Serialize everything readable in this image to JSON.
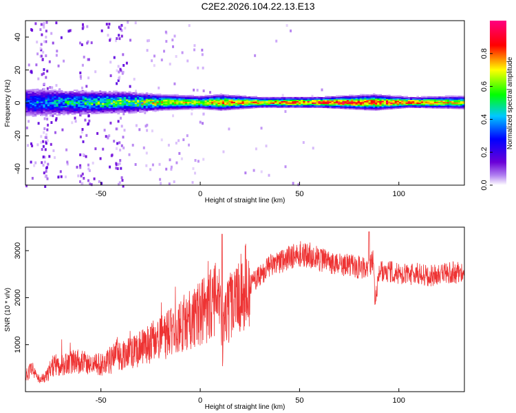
{
  "title": "C2E2.2026.104.22.13.E13",
  "chart_data": [
    {
      "type": "heatmap",
      "xlabel": "Height of straight line (km)",
      "ylabel": "Frequency (Hz)",
      "xlim": [
        -88,
        133
      ],
      "ylim": [
        -50,
        50
      ],
      "xticks": [
        "-50",
        "0",
        "50",
        "100"
      ],
      "yticks": [
        "40",
        "20",
        "0",
        "-20",
        "-40"
      ],
      "colorbar": {
        "label": "Normalized spectral amplitude",
        "range": [
          0,
          1
        ],
        "ticks": [
          "0.0",
          "0.2",
          "0.4",
          "0.6",
          "0.8"
        ],
        "colors": [
          "#ffffff",
          "#6a00d8",
          "#0000ff",
          "#00c8ff",
          "#00ff00",
          "#ffff00",
          "#ff0000",
          "#ff0080"
        ]
      },
      "description_of_content": "",
      "band": [
        {
          "x": -85,
          "half_width_hz": 6,
          "peak_amp": 0.35
        },
        {
          "x": -70,
          "half_width_hz": 5,
          "peak_amp": 0.45
        },
        {
          "x": -50,
          "half_width_hz": 4.5,
          "peak_amp": 0.55
        },
        {
          "x": -35,
          "half_width_hz": 4,
          "peak_amp": 0.6
        },
        {
          "x": -20,
          "half_width_hz": 3,
          "peak_amp": 0.75
        },
        {
          "x": 0,
          "half_width_hz": 2.5,
          "peak_amp": 0.7
        },
        {
          "x": 10,
          "half_width_hz": 3,
          "peak_amp": 0.85
        },
        {
          "x": 30,
          "half_width_hz": 2,
          "peak_amp": 0.8
        },
        {
          "x": 60,
          "half_width_hz": 2,
          "peak_amp": 0.95
        },
        {
          "x": 87,
          "half_width_hz": 3,
          "peak_amp": 0.9
        },
        {
          "x": 105,
          "half_width_hz": 2,
          "peak_amp": 0.9
        },
        {
          "x": 133,
          "half_width_hz": 2.5,
          "peak_amp": 0.7
        }
      ]
    },
    {
      "type": "line",
      "xlabel": "Height of straight line (km)",
      "ylabel": "SNR (10 * v/v)",
      "xlim": [
        -88,
        133
      ],
      "ylim": [
        0,
        3500
      ],
      "xticks": [
        "-50",
        "0",
        "50",
        "100"
      ],
      "yticks": [
        "3000",
        "2000",
        "1000"
      ],
      "color": "#ee3333",
      "series": [
        {
          "x": [
            -88,
            -85,
            -82,
            -80,
            -77,
            -75,
            -70,
            -65,
            -60,
            -55,
            -50,
            -45,
            -42,
            -40,
            -35,
            -30,
            -25,
            -20,
            -15,
            -10,
            -5,
            0,
            5,
            8,
            10,
            11,
            12,
            15,
            20,
            25,
            30,
            35,
            40,
            45,
            50,
            55,
            60,
            65,
            70,
            75,
            80,
            85,
            87,
            88,
            90,
            95,
            100,
            105,
            110,
            115,
            120,
            125,
            130,
            133
          ],
          "values": [
            300,
            480,
            280,
            260,
            320,
            520,
            560,
            600,
            620,
            540,
            560,
            620,
            820,
            720,
            780,
            880,
            1000,
            1080,
            1200,
            1360,
            1480,
            1600,
            1760,
            1860,
            1800,
            650,
            1400,
            1760,
            1950,
            2250,
            2450,
            2650,
            2720,
            2820,
            2900,
            2880,
            2800,
            2700,
            2700,
            2650,
            2620,
            2600,
            2780,
            1900,
            2500,
            2550,
            2480,
            2450,
            2500,
            2450,
            2450,
            2500,
            2520,
            2480
          ]
        }
      ]
    }
  ]
}
